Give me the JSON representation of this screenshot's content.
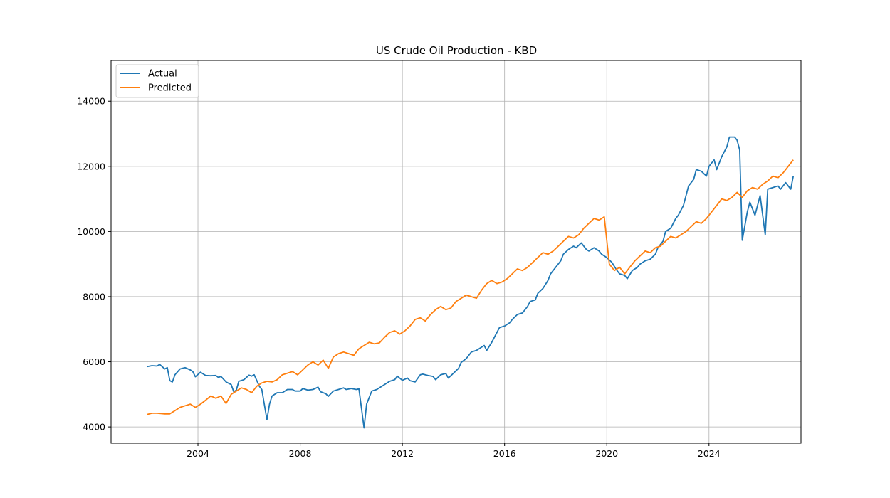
{
  "chart_data": {
    "type": "line",
    "title": "US Crude Oil Production - KBD",
    "xlabel": "",
    "ylabel": "",
    "xlim": [
      2000.6,
      2027.6
    ],
    "ylim": [
      3500,
      15250
    ],
    "x_ticks": [
      2004,
      2008,
      2012,
      2016,
      2020,
      2024
    ],
    "y_ticks": [
      4000,
      6000,
      8000,
      10000,
      12000,
      14000
    ],
    "grid": true,
    "legend_position": "upper left",
    "series": [
      {
        "name": "Actual",
        "color": "#1f77b4",
        "points": [
          [
            2002.0,
            5850
          ],
          [
            2002.2,
            5880
          ],
          [
            2002.4,
            5870
          ],
          [
            2002.5,
            5920
          ],
          [
            2002.7,
            5780
          ],
          [
            2002.8,
            5820
          ],
          [
            2002.9,
            5420
          ],
          [
            2003.0,
            5380
          ],
          [
            2003.1,
            5600
          ],
          [
            2003.3,
            5780
          ],
          [
            2003.5,
            5820
          ],
          [
            2003.7,
            5750
          ],
          [
            2003.8,
            5700
          ],
          [
            2003.9,
            5540
          ],
          [
            2004.1,
            5680
          ],
          [
            2004.3,
            5580
          ],
          [
            2004.5,
            5570
          ],
          [
            2004.7,
            5580
          ],
          [
            2004.8,
            5520
          ],
          [
            2004.9,
            5550
          ],
          [
            2005.1,
            5380
          ],
          [
            2005.3,
            5300
          ],
          [
            2005.4,
            5080
          ],
          [
            2005.5,
            5130
          ],
          [
            2005.6,
            5400
          ],
          [
            2005.8,
            5450
          ],
          [
            2006.0,
            5590
          ],
          [
            2006.1,
            5560
          ],
          [
            2006.2,
            5600
          ],
          [
            2006.4,
            5250
          ],
          [
            2006.5,
            5150
          ],
          [
            2006.7,
            4220
          ],
          [
            2006.8,
            4700
          ],
          [
            2006.9,
            4950
          ],
          [
            2007.1,
            5050
          ],
          [
            2007.3,
            5050
          ],
          [
            2007.5,
            5150
          ],
          [
            2007.7,
            5150
          ],
          [
            2007.8,
            5100
          ],
          [
            2008.0,
            5100
          ],
          [
            2008.1,
            5180
          ],
          [
            2008.3,
            5130
          ],
          [
            2008.5,
            5150
          ],
          [
            2008.7,
            5220
          ],
          [
            2008.8,
            5080
          ],
          [
            2009.0,
            5020
          ],
          [
            2009.1,
            4940
          ],
          [
            2009.3,
            5100
          ],
          [
            2009.5,
            5150
          ],
          [
            2009.7,
            5200
          ],
          [
            2009.8,
            5150
          ],
          [
            2010.0,
            5180
          ],
          [
            2010.2,
            5150
          ],
          [
            2010.3,
            5170
          ],
          [
            2010.5,
            3970
          ],
          [
            2010.6,
            4700
          ],
          [
            2010.8,
            5100
          ],
          [
            2011.0,
            5150
          ],
          [
            2011.2,
            5250
          ],
          [
            2011.3,
            5300
          ],
          [
            2011.5,
            5400
          ],
          [
            2011.7,
            5450
          ],
          [
            2011.8,
            5560
          ],
          [
            2012.0,
            5430
          ],
          [
            2012.2,
            5500
          ],
          [
            2012.3,
            5420
          ],
          [
            2012.5,
            5380
          ],
          [
            2012.7,
            5600
          ],
          [
            2012.8,
            5620
          ],
          [
            2013.0,
            5580
          ],
          [
            2013.2,
            5550
          ],
          [
            2013.3,
            5450
          ],
          [
            2013.5,
            5600
          ],
          [
            2013.7,
            5640
          ],
          [
            2013.8,
            5500
          ],
          [
            2014.0,
            5650
          ],
          [
            2014.2,
            5800
          ],
          [
            2014.3,
            5980
          ],
          [
            2014.5,
            6100
          ],
          [
            2014.7,
            6300
          ],
          [
            2014.9,
            6350
          ],
          [
            2015.0,
            6400
          ],
          [
            2015.2,
            6500
          ],
          [
            2015.3,
            6350
          ],
          [
            2015.5,
            6600
          ],
          [
            2015.7,
            6900
          ],
          [
            2015.8,
            7050
          ],
          [
            2016.0,
            7100
          ],
          [
            2016.2,
            7200
          ],
          [
            2016.3,
            7300
          ],
          [
            2016.5,
            7450
          ],
          [
            2016.7,
            7500
          ],
          [
            2016.9,
            7700
          ],
          [
            2017.0,
            7850
          ],
          [
            2017.2,
            7900
          ],
          [
            2017.3,
            8100
          ],
          [
            2017.5,
            8250
          ],
          [
            2017.7,
            8500
          ],
          [
            2017.8,
            8700
          ],
          [
            2018.0,
            8900
          ],
          [
            2018.2,
            9100
          ],
          [
            2018.3,
            9300
          ],
          [
            2018.5,
            9450
          ],
          [
            2018.7,
            9550
          ],
          [
            2018.8,
            9500
          ],
          [
            2019.0,
            9650
          ],
          [
            2019.2,
            9450
          ],
          [
            2019.3,
            9400
          ],
          [
            2019.5,
            9500
          ],
          [
            2019.7,
            9400
          ],
          [
            2019.8,
            9300
          ],
          [
            2020.0,
            9200
          ],
          [
            2020.2,
            9050
          ],
          [
            2020.4,
            8800
          ],
          [
            2020.5,
            8700
          ],
          [
            2020.7,
            8650
          ],
          [
            2020.8,
            8550
          ],
          [
            2021.0,
            8800
          ],
          [
            2021.2,
            8900
          ],
          [
            2021.3,
            9000
          ],
          [
            2021.5,
            9100
          ],
          [
            2021.7,
            9150
          ],
          [
            2021.9,
            9300
          ],
          [
            2022.0,
            9500
          ],
          [
            2022.2,
            9700
          ],
          [
            2022.3,
            10000
          ],
          [
            2022.5,
            10100
          ],
          [
            2022.7,
            10400
          ],
          [
            2022.8,
            10500
          ],
          [
            2023.0,
            10800
          ],
          [
            2023.2,
            11400
          ],
          [
            2023.4,
            11600
          ],
          [
            2023.5,
            11900
          ],
          [
            2023.7,
            11850
          ],
          [
            2023.9,
            11700
          ],
          [
            2024.0,
            12000
          ],
          [
            2024.2,
            12200
          ],
          [
            2024.3,
            11900
          ],
          [
            2024.5,
            12300
          ],
          [
            2024.7,
            12600
          ],
          [
            2024.8,
            12900
          ],
          [
            2025.0,
            12900
          ],
          [
            2025.1,
            12800
          ],
          [
            2025.2,
            12500
          ],
          [
            2025.3,
            9730
          ],
          [
            2025.5,
            10600
          ],
          [
            2025.6,
            10900
          ],
          [
            2025.8,
            10500
          ],
          [
            2026.0,
            11100
          ],
          [
            2026.2,
            9900
          ],
          [
            2026.3,
            11300
          ],
          [
            2026.5,
            11350
          ],
          [
            2026.7,
            11400
          ],
          [
            2026.8,
            11300
          ],
          [
            2027.0,
            11500
          ],
          [
            2027.2,
            11300
          ],
          [
            2027.3,
            11700
          ]
        ]
      },
      {
        "name": "Predicted",
        "color": "#ff7f0e",
        "points": [
          [
            2002.0,
            4380
          ],
          [
            2002.2,
            4420
          ],
          [
            2002.4,
            4420
          ],
          [
            2002.7,
            4400
          ],
          [
            2002.9,
            4400
          ],
          [
            2003.1,
            4500
          ],
          [
            2003.3,
            4600
          ],
          [
            2003.5,
            4650
          ],
          [
            2003.7,
            4700
          ],
          [
            2003.9,
            4600
          ],
          [
            2004.1,
            4700
          ],
          [
            2004.3,
            4820
          ],
          [
            2004.5,
            4950
          ],
          [
            2004.7,
            4880
          ],
          [
            2004.9,
            4950
          ],
          [
            2005.1,
            4720
          ],
          [
            2005.3,
            5000
          ],
          [
            2005.5,
            5100
          ],
          [
            2005.7,
            5200
          ],
          [
            2005.9,
            5150
          ],
          [
            2006.1,
            5050
          ],
          [
            2006.3,
            5250
          ],
          [
            2006.5,
            5350
          ],
          [
            2006.7,
            5400
          ],
          [
            2006.9,
            5380
          ],
          [
            2007.1,
            5450
          ],
          [
            2007.3,
            5600
          ],
          [
            2007.5,
            5650
          ],
          [
            2007.7,
            5700
          ],
          [
            2007.9,
            5600
          ],
          [
            2008.1,
            5750
          ],
          [
            2008.3,
            5900
          ],
          [
            2008.5,
            6000
          ],
          [
            2008.7,
            5900
          ],
          [
            2008.9,
            6050
          ],
          [
            2009.1,
            5800
          ],
          [
            2009.3,
            6150
          ],
          [
            2009.5,
            6250
          ],
          [
            2009.7,
            6300
          ],
          [
            2009.9,
            6250
          ],
          [
            2010.1,
            6200
          ],
          [
            2010.3,
            6400
          ],
          [
            2010.5,
            6500
          ],
          [
            2010.7,
            6600
          ],
          [
            2010.9,
            6550
          ],
          [
            2011.1,
            6580
          ],
          [
            2011.3,
            6750
          ],
          [
            2011.5,
            6900
          ],
          [
            2011.7,
            6950
          ],
          [
            2011.9,
            6850
          ],
          [
            2012.1,
            6950
          ],
          [
            2012.3,
            7100
          ],
          [
            2012.5,
            7300
          ],
          [
            2012.7,
            7350
          ],
          [
            2012.9,
            7250
          ],
          [
            2013.1,
            7450
          ],
          [
            2013.3,
            7600
          ],
          [
            2013.5,
            7700
          ],
          [
            2013.7,
            7600
          ],
          [
            2013.9,
            7650
          ],
          [
            2014.1,
            7850
          ],
          [
            2014.3,
            7950
          ],
          [
            2014.5,
            8050
          ],
          [
            2014.7,
            8000
          ],
          [
            2014.9,
            7950
          ],
          [
            2015.1,
            8200
          ],
          [
            2015.3,
            8400
          ],
          [
            2015.5,
            8500
          ],
          [
            2015.7,
            8400
          ],
          [
            2015.9,
            8450
          ],
          [
            2016.1,
            8550
          ],
          [
            2016.3,
            8700
          ],
          [
            2016.5,
            8850
          ],
          [
            2016.7,
            8800
          ],
          [
            2016.9,
            8900
          ],
          [
            2017.1,
            9050
          ],
          [
            2017.3,
            9200
          ],
          [
            2017.5,
            9350
          ],
          [
            2017.7,
            9300
          ],
          [
            2017.9,
            9400
          ],
          [
            2018.1,
            9550
          ],
          [
            2018.3,
            9700
          ],
          [
            2018.5,
            9850
          ],
          [
            2018.7,
            9800
          ],
          [
            2018.9,
            9900
          ],
          [
            2019.1,
            10100
          ],
          [
            2019.3,
            10250
          ],
          [
            2019.5,
            10400
          ],
          [
            2019.7,
            10350
          ],
          [
            2019.9,
            10450
          ],
          [
            2020.1,
            9000
          ],
          [
            2020.3,
            8800
          ],
          [
            2020.5,
            8900
          ],
          [
            2020.7,
            8700
          ],
          [
            2020.9,
            8900
          ],
          [
            2021.1,
            9100
          ],
          [
            2021.3,
            9250
          ],
          [
            2021.5,
            9400
          ],
          [
            2021.7,
            9350
          ],
          [
            2021.9,
            9500
          ],
          [
            2022.1,
            9550
          ],
          [
            2022.3,
            9700
          ],
          [
            2022.5,
            9850
          ],
          [
            2022.7,
            9800
          ],
          [
            2022.9,
            9900
          ],
          [
            2023.1,
            10000
          ],
          [
            2023.3,
            10150
          ],
          [
            2023.5,
            10300
          ],
          [
            2023.7,
            10250
          ],
          [
            2023.9,
            10400
          ],
          [
            2024.1,
            10600
          ],
          [
            2024.3,
            10800
          ],
          [
            2024.5,
            11000
          ],
          [
            2024.7,
            10950
          ],
          [
            2024.9,
            11050
          ],
          [
            2025.1,
            11200
          ],
          [
            2025.3,
            11050
          ],
          [
            2025.5,
            11250
          ],
          [
            2025.7,
            11350
          ],
          [
            2025.9,
            11300
          ],
          [
            2026.1,
            11450
          ],
          [
            2026.3,
            11550
          ],
          [
            2026.5,
            11700
          ],
          [
            2026.7,
            11650
          ],
          [
            2026.9,
            11800
          ],
          [
            2027.1,
            12000
          ],
          [
            2027.3,
            12200
          ]
        ]
      }
    ]
  }
}
